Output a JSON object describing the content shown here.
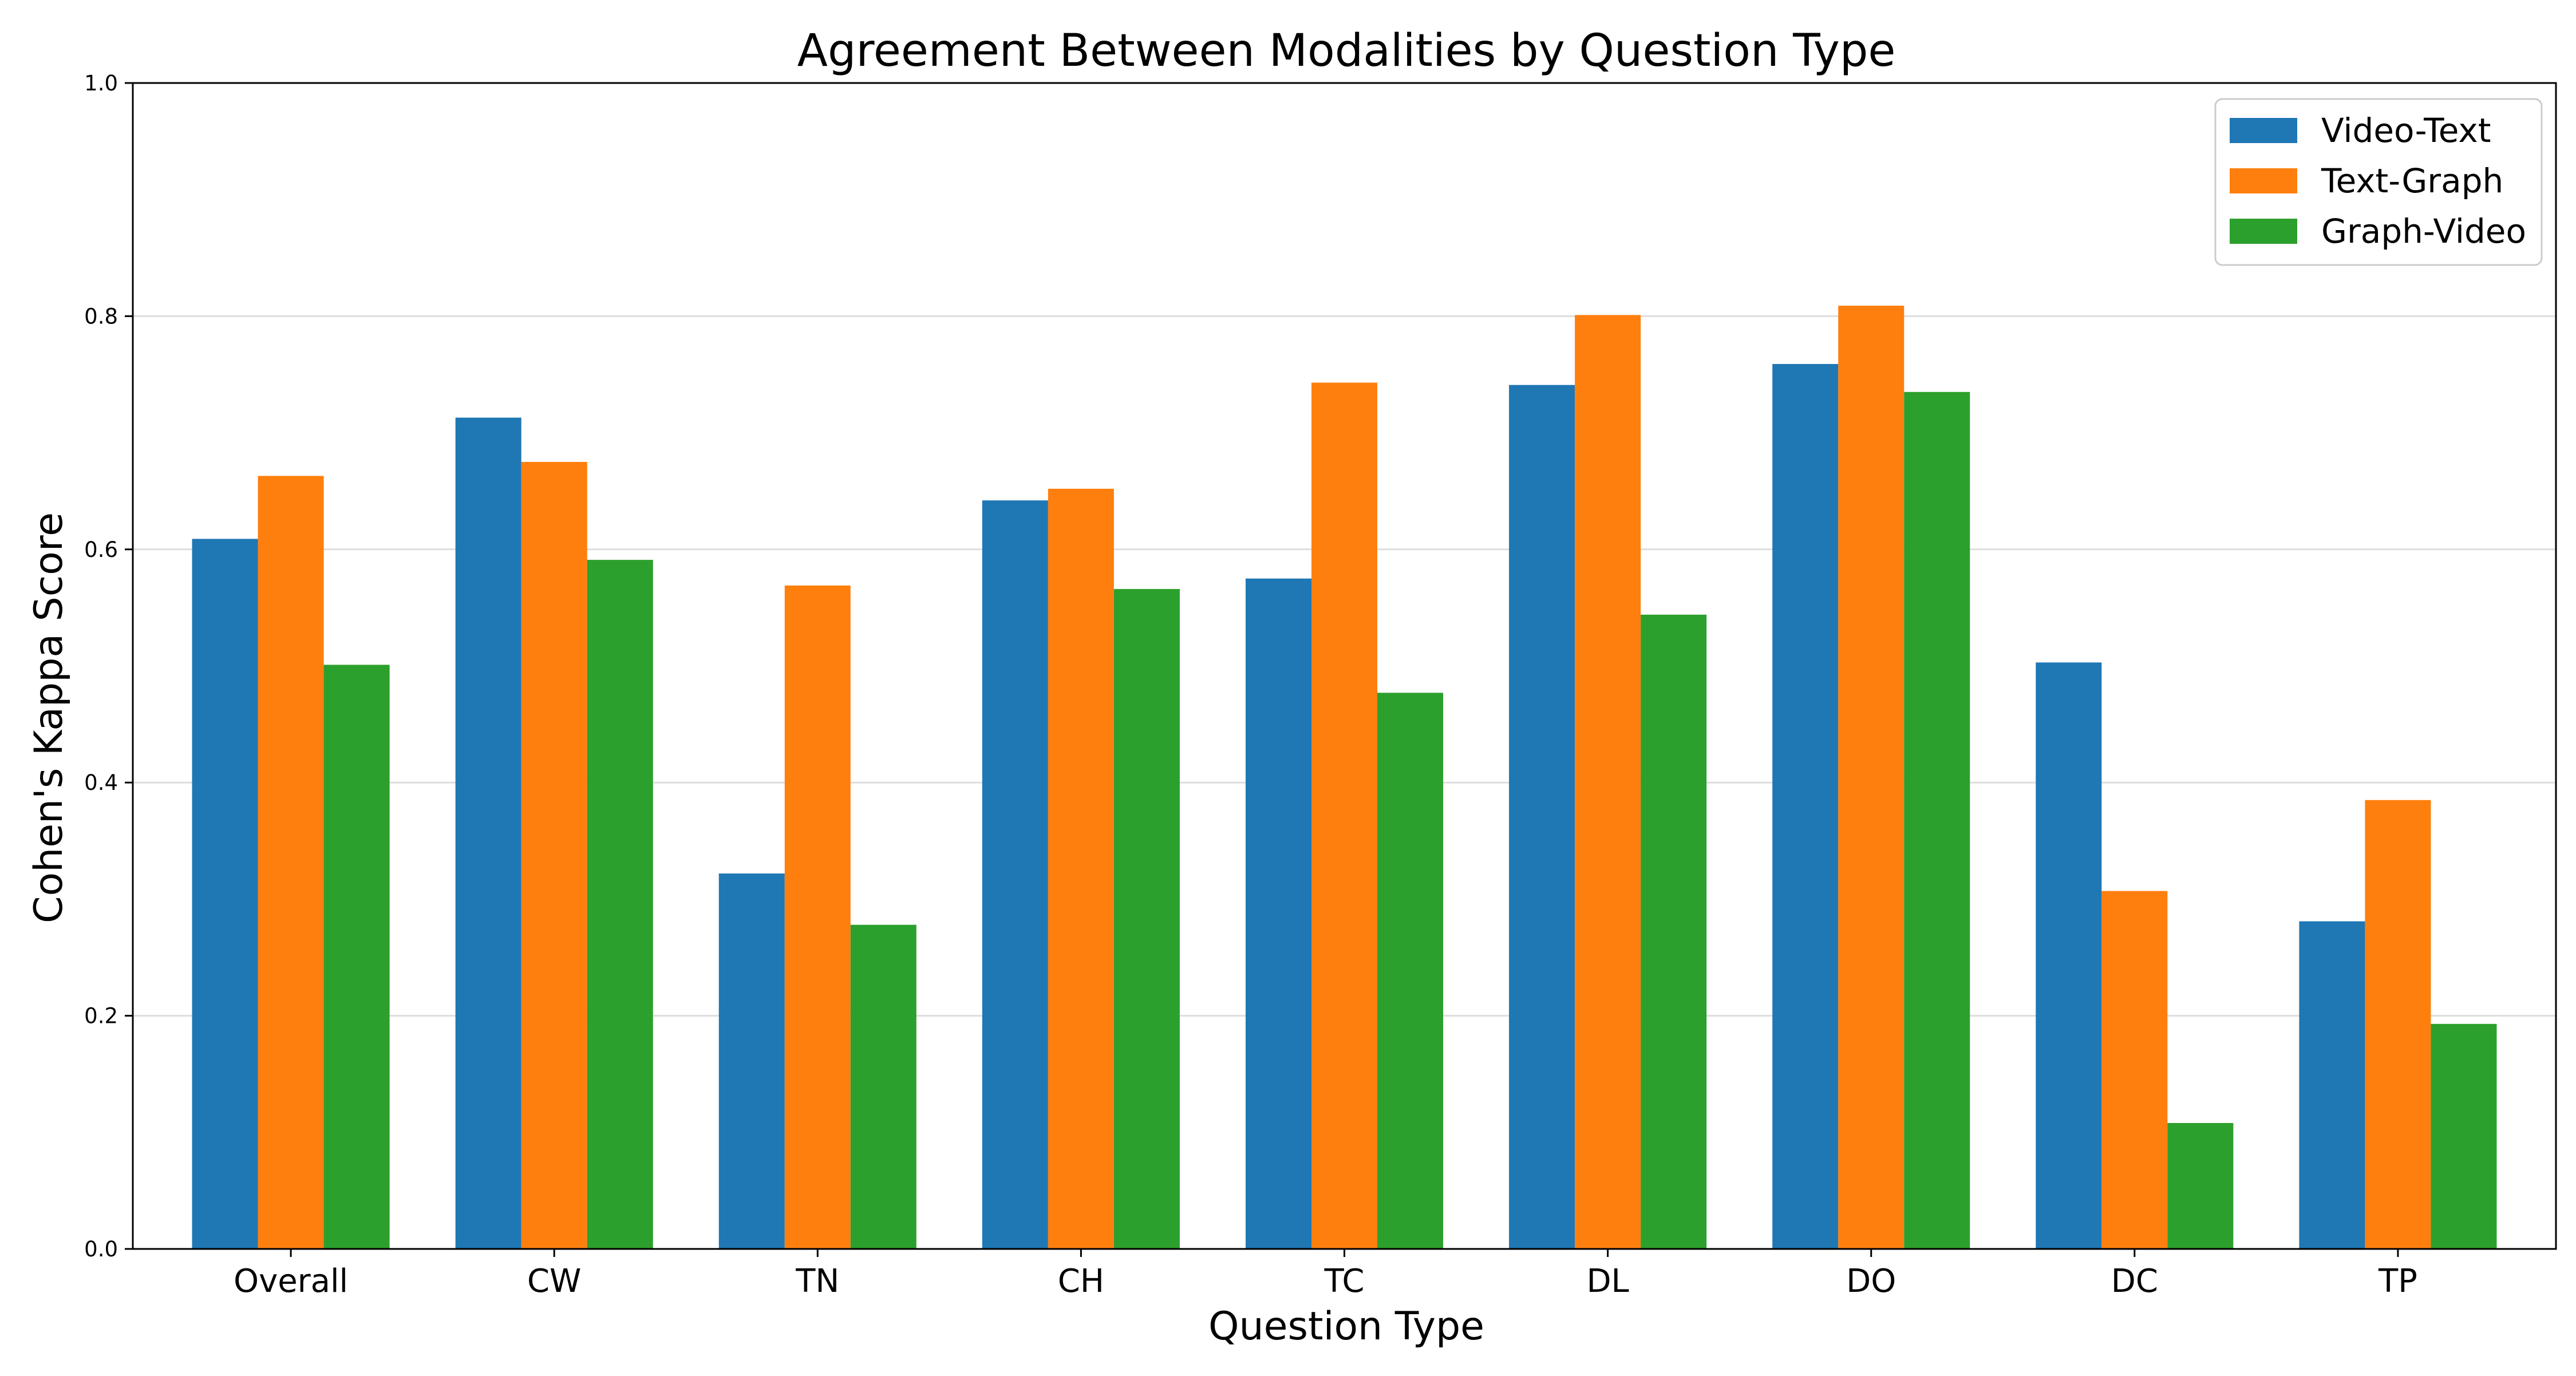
{
  "chart_data": {
    "type": "bar",
    "title": "Agreement Between Modalities by Question Type",
    "xlabel": "Question Type",
    "ylabel": "Cohen's Kappa Score",
    "ylim": [
      0,
      1.0
    ],
    "yticks": [
      "0.0",
      "0.2",
      "0.4",
      "0.6",
      "0.8",
      "1.0"
    ],
    "categories": [
      "Overall",
      "CW",
      "TN",
      "CH",
      "TC",
      "DL",
      "DO",
      "DC",
      "TP"
    ],
    "series": [
      {
        "name": "Video-Text",
        "color": "#1f77b4",
        "values": [
          0.609,
          0.713,
          0.322,
          0.642,
          0.575,
          0.741,
          0.759,
          0.503,
          0.281
        ]
      },
      {
        "name": "Text-Graph",
        "color": "#ff7f0e",
        "values": [
          0.663,
          0.675,
          0.569,
          0.652,
          0.743,
          0.801,
          0.809,
          0.307,
          0.385
        ]
      },
      {
        "name": "Graph-Video",
        "color": "#2ca02c",
        "values": [
          0.501,
          0.591,
          0.278,
          0.566,
          0.477,
          0.544,
          0.735,
          0.108,
          0.193
        ]
      }
    ],
    "grid": "y-major",
    "legend_position": "top-right"
  }
}
